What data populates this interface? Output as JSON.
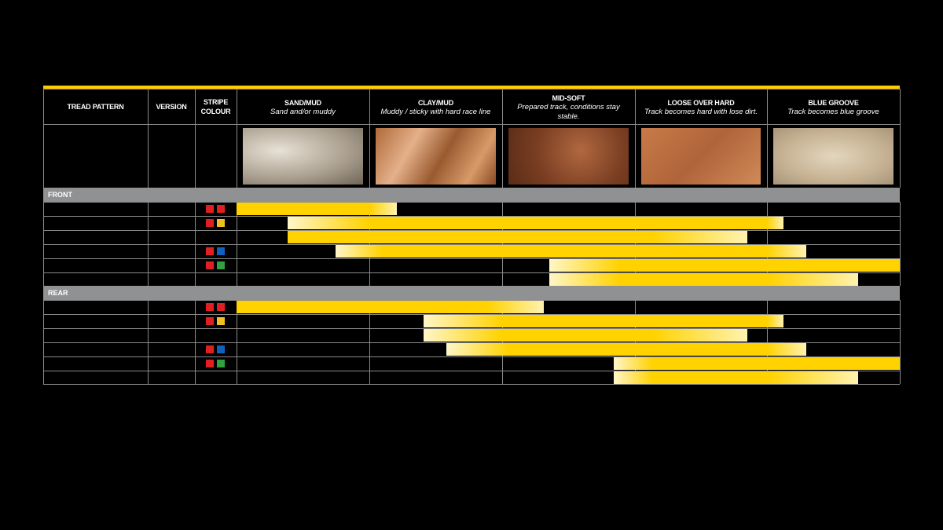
{
  "header": {
    "columns": [
      {
        "title": "TREAD PATTERN"
      },
      {
        "title": "VERSION"
      },
      {
        "title": "STRIPE COLOUR"
      },
      {
        "title": "SAND/MUD",
        "description": "Sand and/or muddy"
      },
      {
        "title": "CLAY/MUD",
        "description": "Muddy / sticky with hard race line"
      },
      {
        "title": "MID-SOFT",
        "description": "Prepared track, conditions stay stable."
      },
      {
        "title": "LOOSE OVER HARD",
        "description": "Track becomes hard with lose dirt."
      },
      {
        "title": "BLUE GROOVE",
        "description": "Track becomes blue groove"
      }
    ]
  },
  "sections": [
    {
      "label": "FRONT"
    },
    {
      "label": "REAR"
    }
  ]
}
